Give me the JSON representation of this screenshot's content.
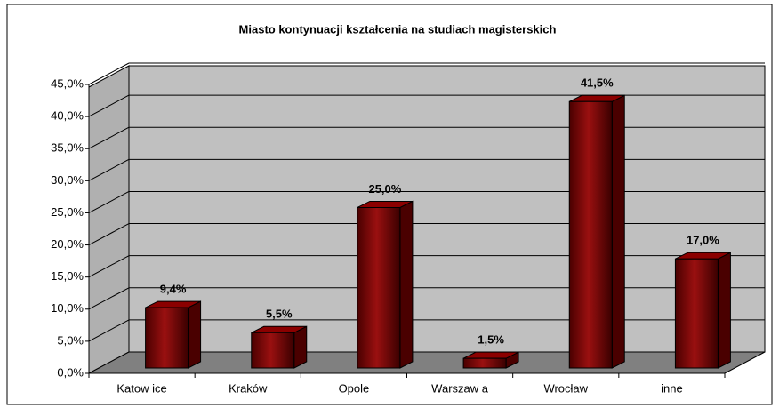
{
  "chart_data": {
    "type": "bar3d",
    "title": "Miasto kontynuacji kształcenia na studiach magisterskich",
    "categories": [
      "Katow ice",
      "Kraków",
      "Opole",
      "Warszaw a",
      "Wrocław",
      "inne"
    ],
    "values": [
      9.4,
      5.5,
      25.0,
      1.5,
      41.5,
      17.0
    ],
    "value_labels": [
      "9,4%",
      "5,5%",
      "25,0%",
      "1,5%",
      "41,5%",
      "17,0%"
    ],
    "color": "#8b0000",
    "ylim": [
      0,
      45
    ],
    "yticks": [
      {
        "value": 0,
        "label": "0,0%"
      },
      {
        "value": 5,
        "label": "5,0%"
      },
      {
        "value": 10,
        "label": "10,0%"
      },
      {
        "value": 15,
        "label": "15,0%"
      },
      {
        "value": 20,
        "label": "20,0%"
      },
      {
        "value": 25,
        "label": "25,0%"
      },
      {
        "value": 30,
        "label": "30,0%"
      },
      {
        "value": 35,
        "label": "35,0%"
      },
      {
        "value": 40,
        "label": "40,0%"
      },
      {
        "value": 45,
        "label": "45,0%"
      }
    ],
    "grid": true
  }
}
